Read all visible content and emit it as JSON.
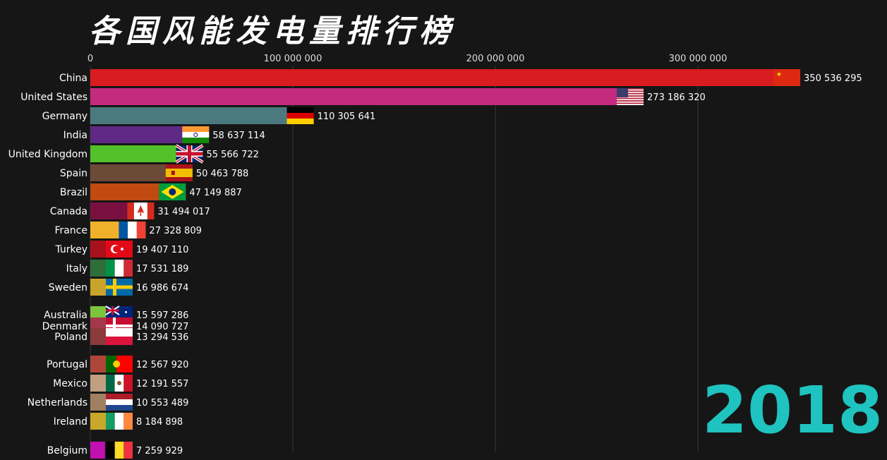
{
  "title": "各国风能发电量排行榜",
  "year": "2018",
  "chart_data": {
    "type": "bar",
    "orientation": "horizontal",
    "title": "各国风能发电量排行榜",
    "xlim": [
      0,
      350536295
    ],
    "xticks": [
      0,
      100000000,
      200000000,
      300000000
    ],
    "xtick_labels": [
      "0",
      "100 000 000",
      "200 000 000",
      "300 000 000"
    ],
    "grid": true,
    "categories": [
      "China",
      "United States",
      "Germany",
      "India",
      "United Kingdom",
      "Spain",
      "Brazil",
      "Canada",
      "France",
      "Turkey",
      "Italy",
      "Sweden",
      "Australia",
      "Denmark",
      "Poland",
      "Portugal",
      "Mexico",
      "Netherlands",
      "Ireland",
      "Belgium"
    ],
    "values": [
      350536295,
      273186320,
      110305641,
      58637114,
      55566722,
      50463788,
      47149887,
      31494017,
      27328809,
      19407110,
      17531189,
      16986674,
      15597286,
      14090727,
      13294536,
      12567920,
      12191557,
      10553489,
      8184898,
      7259929
    ],
    "value_labels": [
      "350 536 295",
      "273 186 320",
      "110 305 641",
      "58 637 114",
      "55 566 722",
      "50 463 788",
      "47 149 887",
      "31 494 017",
      "27 328 809",
      "19 407 110",
      "17 531 189",
      "16 986 674",
      "15 597 286",
      "14 090 727",
      "13 294 536",
      "12 567 920",
      "12 191 557",
      "10 553 489",
      "8 184 898",
      "7 259 929"
    ],
    "bar_colors": [
      "#d91c20",
      "#c42a7e",
      "#4b7a7e",
      "#5e2a86",
      "#52c12a",
      "#6b4a36",
      "#c04a12",
      "#7a1040",
      "#f0b02a",
      "#a8101c",
      "#2e6e3a",
      "#c9a42a",
      "#7cc43a",
      "#a3384a",
      "#8c3a3a",
      "#b0463a",
      "#c0a080",
      "#a08060",
      "#c8a82a",
      "#c010b0"
    ],
    "flags": [
      "china-flag",
      "usa-flag",
      "germany-flag",
      "india-flag",
      "uk-flag",
      "spain-flag",
      "brazil-flag",
      "canada-flag",
      "france-flag",
      "turkey-flag",
      "italy-flag",
      "sweden-flag",
      "australia-flag",
      "denmark-flag",
      "poland-flag",
      "portugal-flag",
      "mexico-flag",
      "netherlands-flag",
      "ireland-flag",
      "belgium-flag"
    ]
  }
}
